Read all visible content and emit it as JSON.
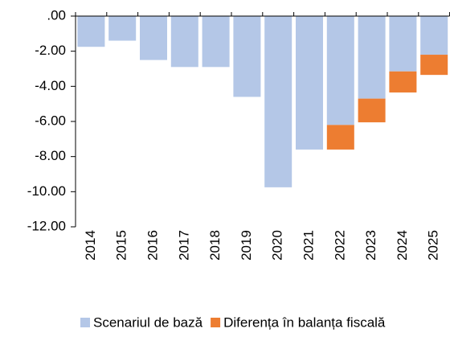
{
  "chart_data": {
    "type": "stacked_bar",
    "categories": [
      "2014",
      "2015",
      "2016",
      "2017",
      "2018",
      "2019",
      "2020",
      "2021",
      "2022",
      "2023",
      "2024",
      "2025"
    ],
    "series": [
      {
        "name": "Scenariul de bază",
        "color": "#b4c7e7",
        "values": [
          -1.75,
          -1.4,
          -2.5,
          -2.9,
          -2.9,
          -4.6,
          -9.75,
          -7.6,
          -6.2,
          -4.7,
          -3.15,
          -2.2
        ]
      },
      {
        "name": "Diferența în balanța fiscală",
        "color": "#ed7d31",
        "values": [
          0,
          0,
          0,
          0,
          0,
          0,
          0,
          0,
          -1.4,
          -1.35,
          -1.2,
          -1.15
        ]
      }
    ],
    "ylim": [
      -12,
      0
    ],
    "yticks": [
      {
        "value": 0,
        "label": ".00"
      },
      {
        "value": -2,
        "label": "-2.00"
      },
      {
        "value": -4,
        "label": "-4.00"
      },
      {
        "value": -6,
        "label": "-6.00"
      },
      {
        "value": -8,
        "label": "-8.00"
      },
      {
        "value": -10,
        "label": "-10.00"
      },
      {
        "value": -12,
        "label": "-12.00"
      }
    ],
    "legend": "bottom"
  }
}
